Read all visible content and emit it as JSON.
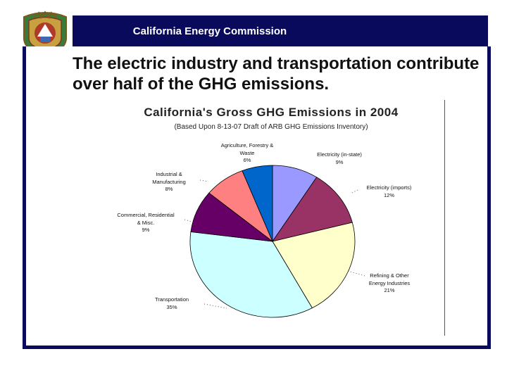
{
  "header": {
    "banner_text": "California Energy Commission"
  },
  "slide": {
    "title": "The electric industry and transportation contribute over half of the GHG emissions."
  },
  "colors": {
    "banner": "#0a0a5c",
    "frame": "#0a0a5c"
  },
  "chart_data": {
    "type": "pie",
    "title": "California's Gross GHG Emissions in 2004",
    "subtitle": "(Based Upon 8-13-07 Draft of ARB GHG Emissions Inventory)",
    "start_angle_deg": 0,
    "direction": "clockwise",
    "slices": [
      {
        "name": "Electricity (in-state)",
        "label_lines": [
          "Electricity (in-state)"
        ],
        "value": 9,
        "pct_label": "9%",
        "color": "#9999ff"
      },
      {
        "name": "Electricity (imports)",
        "label_lines": [
          "Electricity (imports)"
        ],
        "value": 12,
        "pct_label": "12%",
        "color": "#993366"
      },
      {
        "name": "Refining & Other Energy Industries",
        "label_lines": [
          "Refining & Other",
          "Energy Industries"
        ],
        "value": 21,
        "pct_label": "21%",
        "color": "#ffffcc"
      },
      {
        "name": "Transportation",
        "label_lines": [
          "Transportation"
        ],
        "value": 35,
        "pct_label": "35%",
        "color": "#ccffff"
      },
      {
        "name": "Commercial, Residential & Misc.",
        "label_lines": [
          "Commercial, Residential",
          "& Misc."
        ],
        "value": 9,
        "pct_label": "9%",
        "color": "#660066"
      },
      {
        "name": "Industrial & Manufacturing",
        "label_lines": [
          "Industrial &",
          "Manufacturing"
        ],
        "value": 8,
        "pct_label": "8%",
        "color": "#ff8080"
      },
      {
        "name": "Agriculture, Forestry & Waste",
        "label_lines": [
          "Agriculture, Forestry &",
          "Waste"
        ],
        "value": 6,
        "pct_label": "6%",
        "color": "#0066cc"
      }
    ]
  }
}
